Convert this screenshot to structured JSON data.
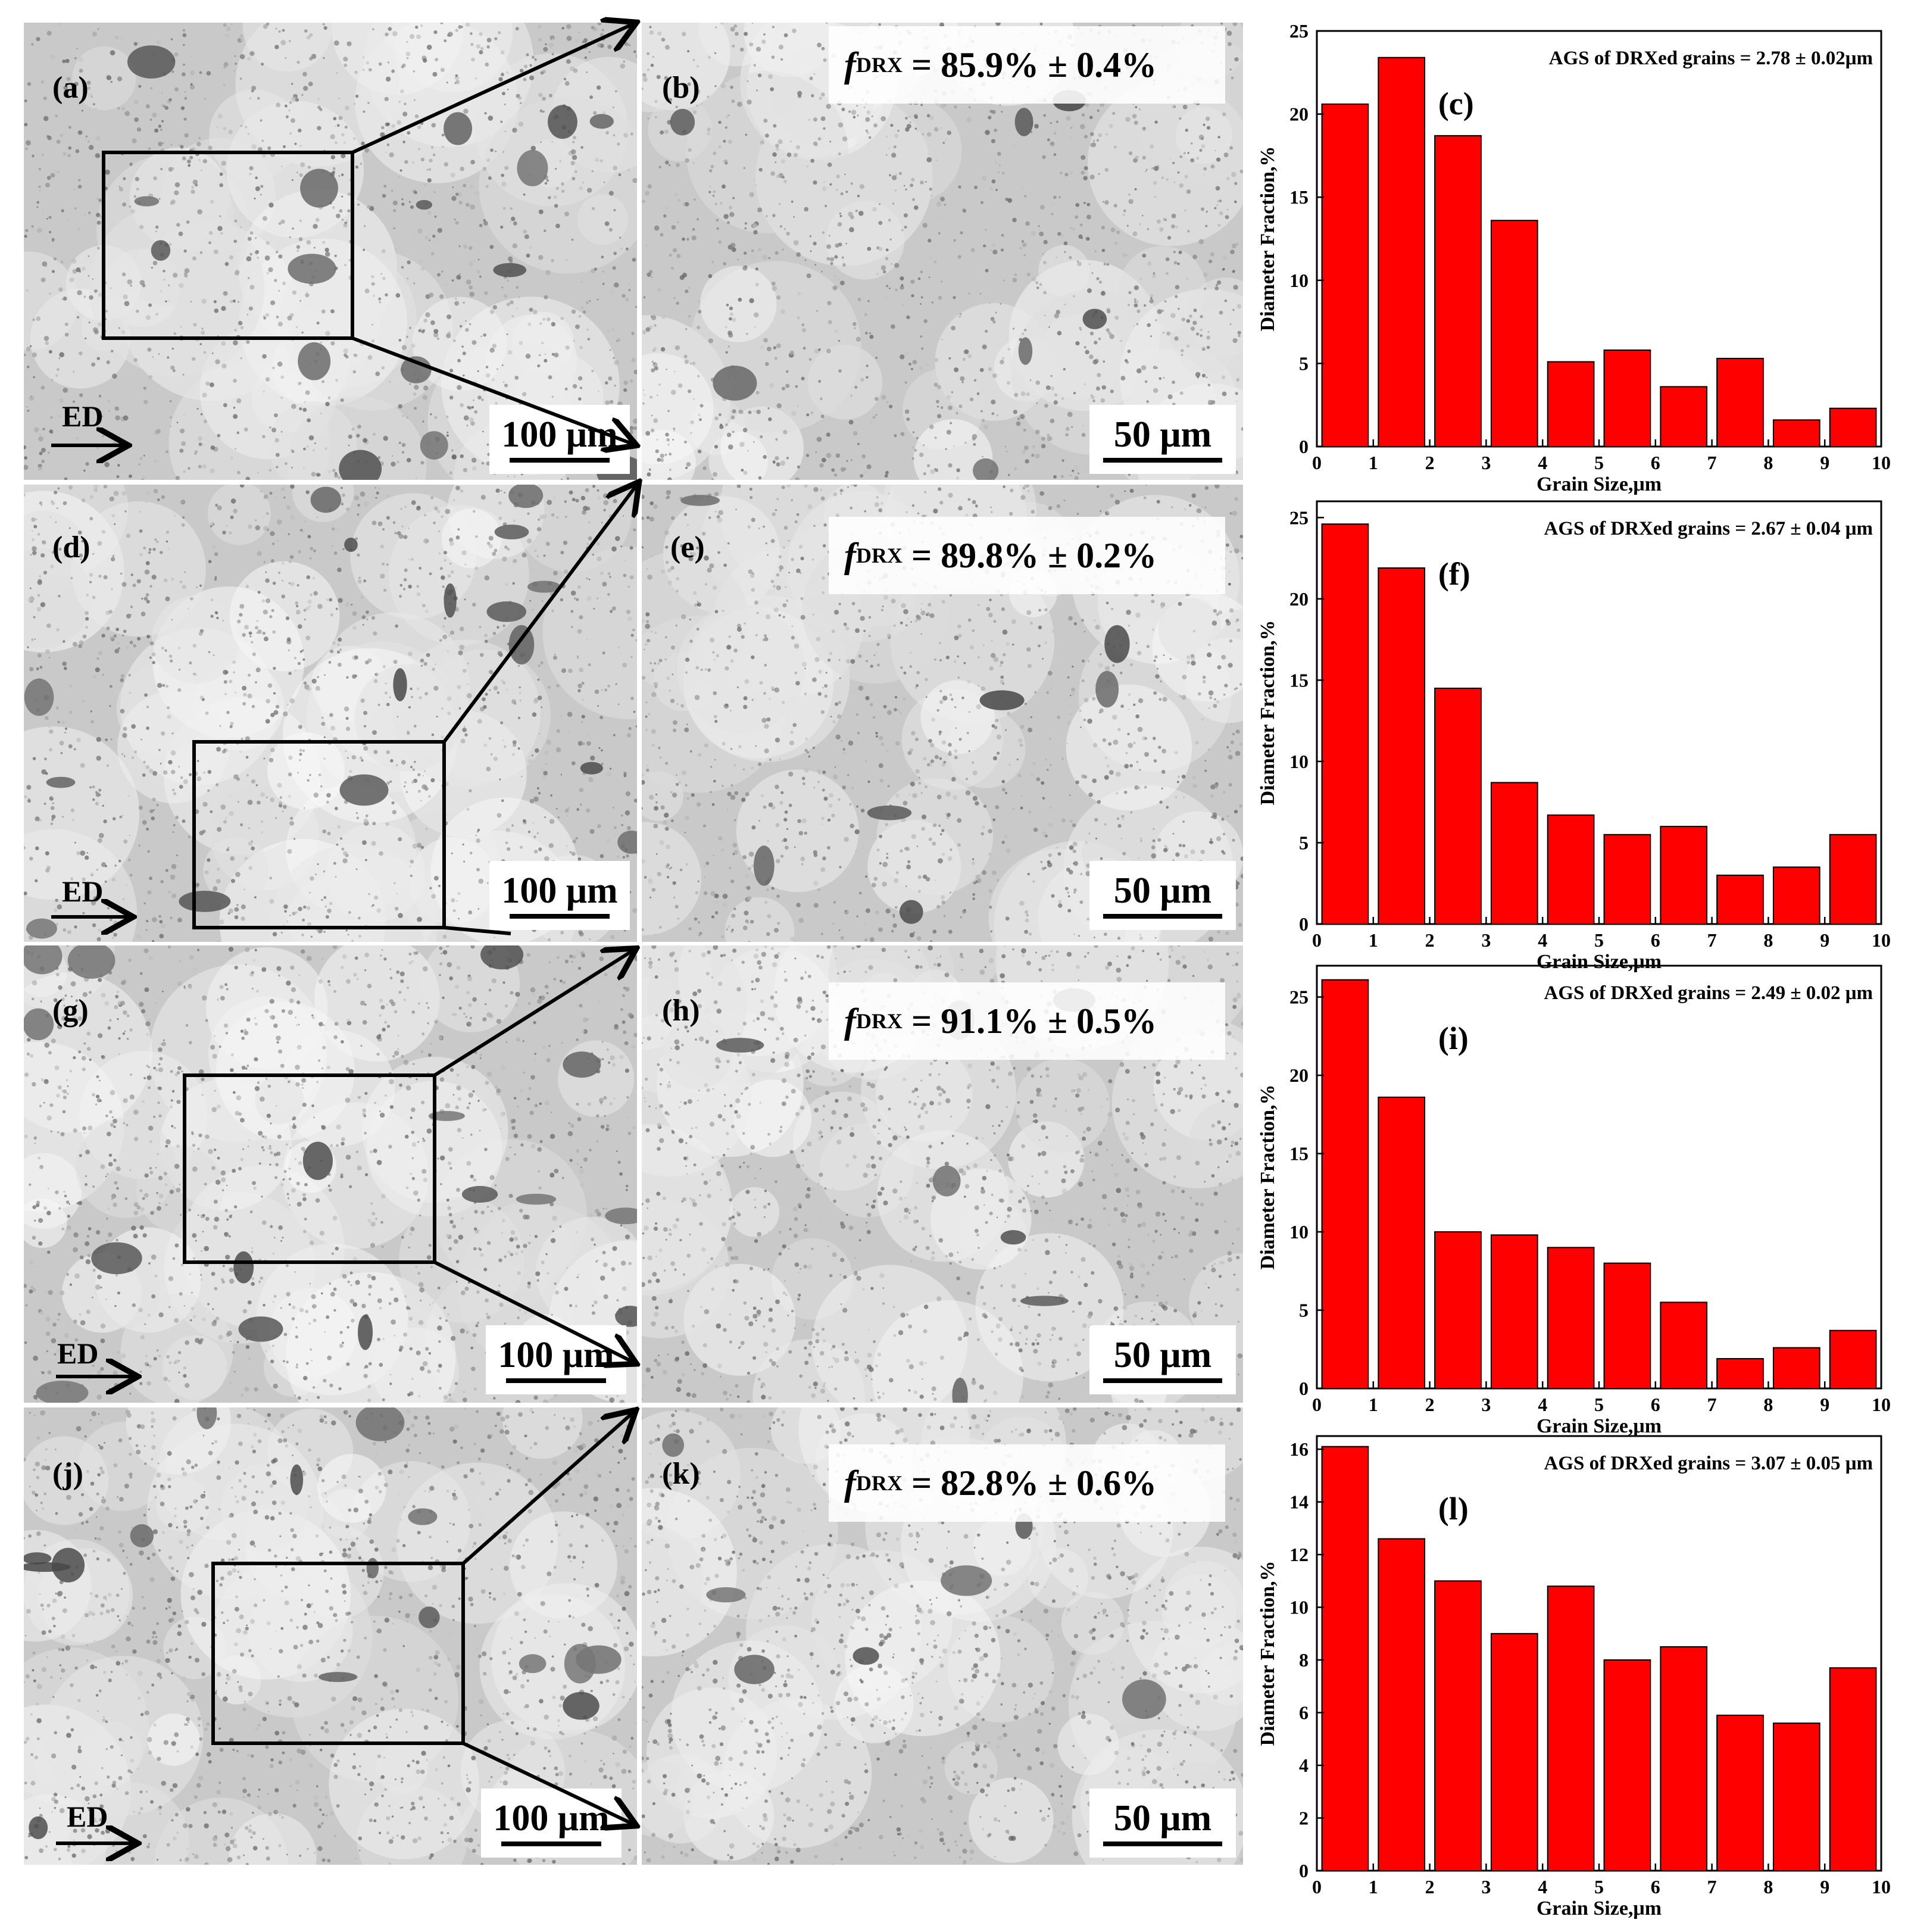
{
  "figure": {
    "rows": [
      {
        "low_label": "(a)",
        "high_label": "(b)",
        "chart_label": "(c)",
        "low_scale": "100 μm",
        "high_scale": "50 μm",
        "direction": "ED",
        "f_symbol": "f",
        "f_sub": "DRX",
        "f_value": "= 85.9% ± 0.4%",
        "ags": "AGS of DRXed grains = 2.78 ± 0.02μm"
      },
      {
        "low_label": "(d)",
        "high_label": "(e)",
        "chart_label": "(f)",
        "low_scale": "100 μm",
        "high_scale": "50 μm",
        "direction": "ED",
        "f_symbol": "f",
        "f_sub": "DRX",
        "f_value": "= 89.8% ± 0.2%",
        "ags": "AGS of DRXed grains = 2.67 ± 0.04 μm"
      },
      {
        "low_label": "(g)",
        "high_label": "(h)",
        "chart_label": "(i)",
        "low_scale": "100 μm",
        "high_scale": "50 μm",
        "direction": "ED",
        "f_symbol": "f",
        "f_sub": "DRX",
        "f_value": "= 91.1% ± 0.5%",
        "ags": "AGS of DRXed grains = 2.49 ± 0.02 μm"
      },
      {
        "low_label": "(j)",
        "high_label": "(k)",
        "chart_label": "(l)",
        "low_scale": "100 μm",
        "high_scale": "50 μm",
        "direction": "ED",
        "f_symbol": "f",
        "f_sub": "DRX",
        "f_value": "= 82.8% ± 0.6%",
        "ags": "AGS of DRXed grains = 3.07 ± 0.05 μm"
      }
    ]
  },
  "colors": {
    "bar_fill": "#ff0000",
    "bar_stroke": "#000000"
  },
  "chart_data": [
    {
      "type": "bar",
      "xlabel": "Grain Size,μm",
      "ylabel": "Diameter Fraction,%",
      "x": [
        0.5,
        1.5,
        2.5,
        3.5,
        4.5,
        5.5,
        6.5,
        7.5,
        8.5,
        9.5
      ],
      "values": [
        20.6,
        23.4,
        18.7,
        13.6,
        5.1,
        5.8,
        3.6,
        5.3,
        1.6,
        2.3
      ],
      "xlim": [
        0,
        10
      ],
      "ylim": [
        0,
        25
      ],
      "xticks": [
        0,
        1,
        2,
        3,
        4,
        5,
        6,
        7,
        8,
        9,
        10
      ],
      "yticks": [
        0,
        5,
        10,
        15,
        20,
        25
      ]
    },
    {
      "type": "bar",
      "xlabel": "Grain Size,μm",
      "ylabel": "Diameter Fraction,%",
      "x": [
        0.5,
        1.5,
        2.5,
        3.5,
        4.5,
        5.5,
        6.5,
        7.5,
        8.5,
        9.5
      ],
      "values": [
        24.6,
        21.9,
        14.5,
        8.7,
        6.7,
        5.5,
        6.0,
        3.0,
        3.5,
        5.5
      ],
      "xlim": [
        0,
        10
      ],
      "ylim": [
        0,
        26
      ],
      "xticks": [
        0,
        1,
        2,
        3,
        4,
        5,
        6,
        7,
        8,
        9,
        10
      ],
      "yticks": [
        0,
        5,
        10,
        15,
        20,
        25
      ]
    },
    {
      "type": "bar",
      "xlabel": "Grain Size,μm",
      "ylabel": "Diameter Fraction,%",
      "x": [
        0.5,
        1.5,
        2.5,
        3.5,
        4.5,
        5.5,
        6.5,
        7.5,
        8.5,
        9.5
      ],
      "values": [
        26.1,
        18.6,
        10.0,
        9.8,
        9.0,
        8.0,
        5.5,
        1.9,
        2.6,
        3.7
      ],
      "xlim": [
        0,
        10
      ],
      "ylim": [
        0,
        27
      ],
      "xticks": [
        0,
        1,
        2,
        3,
        4,
        5,
        6,
        7,
        8,
        9,
        10
      ],
      "yticks": [
        0,
        5,
        10,
        15,
        20,
        25
      ]
    },
    {
      "type": "bar",
      "xlabel": "Grain Size,μm",
      "ylabel": "Diameter Fraction,%",
      "x": [
        0.5,
        1.5,
        2.5,
        3.5,
        4.5,
        5.5,
        6.5,
        7.5,
        8.5,
        9.5
      ],
      "values": [
        16.1,
        12.6,
        11.0,
        9.0,
        10.8,
        8.0,
        8.5,
        5.9,
        5.6,
        7.7
      ],
      "xlim": [
        0,
        10
      ],
      "ylim": [
        0,
        16.5
      ],
      "xticks": [
        0,
        1,
        2,
        3,
        4,
        5,
        6,
        7,
        8,
        9,
        10
      ],
      "yticks": [
        0,
        2,
        4,
        6,
        8,
        10,
        12,
        14,
        16
      ]
    }
  ]
}
